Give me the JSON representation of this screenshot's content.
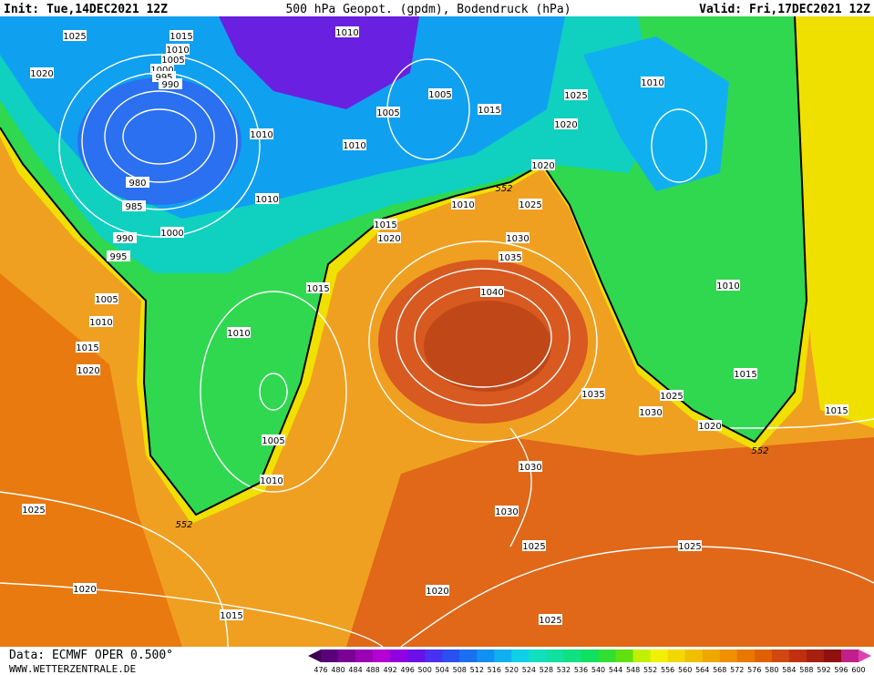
{
  "header": {
    "init": "Init: Tue,14DEC2021 12Z",
    "title": "500 hPa Geopot. (gpdm), Bodendruck (hPa)",
    "valid": "Valid: Fri,17DEC2021 12Z"
  },
  "contour_labels": [
    "552",
    "552",
    "552"
  ],
  "isobar_labels": [
    "1025",
    "1015",
    "1010",
    "1005",
    "1000",
    "995",
    "990",
    "1010",
    "1020",
    "1005",
    "1015",
    "1025",
    "1010",
    "1005",
    "1010",
    "1010",
    "1020",
    "1020",
    "980",
    "985",
    "1010",
    "1010",
    "1025",
    "1000",
    "990",
    "995",
    "1015",
    "1020",
    "1030",
    "1035",
    "1015",
    "1040",
    "1005",
    "1010",
    "1015",
    "1010",
    "1010",
    "1020",
    "1015",
    "1035",
    "1025",
    "1030",
    "1020",
    "1015",
    "1005",
    "1030",
    "1010",
    "1025",
    "1030",
    "1025",
    "1025",
    "1020",
    "1020",
    "1015",
    "1025"
  ],
  "footer": {
    "data": "Data: ECMWF OPER 0.500°",
    "site": "WWW.WETTERZENTRALE.DE"
  },
  "legend": {
    "values": [
      "476",
      "480",
      "484",
      "488",
      "492",
      "496",
      "500",
      "504",
      "508",
      "512",
      "516",
      "520",
      "524",
      "528",
      "532",
      "536",
      "540",
      "544",
      "548",
      "552",
      "556",
      "560",
      "564",
      "568",
      "572",
      "576",
      "580",
      "584",
      "588",
      "592",
      "596",
      "600"
    ],
    "colors": [
      "#3c0050",
      "#5a0078",
      "#7a0096",
      "#9a00b4",
      "#b400d2",
      "#9000e0",
      "#6a10e8",
      "#4a30f0",
      "#2a50f0",
      "#1a70f0",
      "#1090f0",
      "#10b0f0",
      "#10d0e8",
      "#10e0c0",
      "#10e0a0",
      "#10e080",
      "#10e060",
      "#30e030",
      "#60e010",
      "#c0f000",
      "#f0f000",
      "#f0d800",
      "#f0c000",
      "#f0a800",
      "#f09000",
      "#e87800",
      "#e06000",
      "#d04810",
      "#c03010",
      "#a82010",
      "#901010",
      "#c0208a",
      "#e040b0"
    ]
  }
}
